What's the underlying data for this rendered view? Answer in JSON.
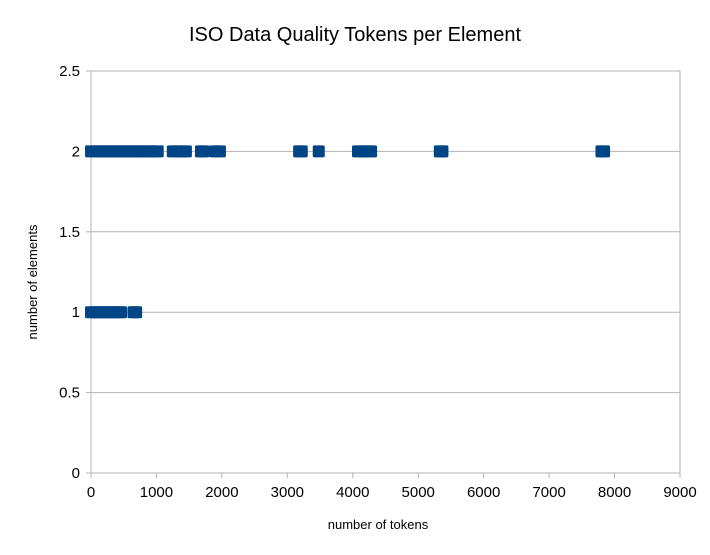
{
  "chart_data": {
    "type": "scatter",
    "title": "ISO Data Quality Tokens per Element",
    "xlabel": "number of tokens",
    "ylabel": "number of elements",
    "xlim": [
      0,
      9000
    ],
    "ylim": [
      0,
      2.5
    ],
    "xticks": [
      "0",
      "1000",
      "2000",
      "3000",
      "4000",
      "5000",
      "6000",
      "7000",
      "8000",
      "9000"
    ],
    "yticks": [
      "0",
      "0.5",
      "1",
      "1.5",
      "2",
      "2.5"
    ],
    "grid": "horizontal",
    "legend": "none",
    "marker_color": "#004586",
    "series": [
      {
        "points": [
          {
            "x": 0,
            "y": 2
          },
          {
            "x": 60,
            "y": 2
          },
          {
            "x": 120,
            "y": 2
          },
          {
            "x": 180,
            "y": 2
          },
          {
            "x": 240,
            "y": 2
          },
          {
            "x": 300,
            "y": 2
          },
          {
            "x": 360,
            "y": 2
          },
          {
            "x": 420,
            "y": 2
          },
          {
            "x": 480,
            "y": 2
          },
          {
            "x": 540,
            "y": 2
          },
          {
            "x": 600,
            "y": 2
          },
          {
            "x": 660,
            "y": 2
          },
          {
            "x": 720,
            "y": 2
          },
          {
            "x": 780,
            "y": 2
          },
          {
            "x": 840,
            "y": 2
          },
          {
            "x": 900,
            "y": 2
          },
          {
            "x": 960,
            "y": 2
          },
          {
            "x": 1020,
            "y": 2
          },
          {
            "x": 1250,
            "y": 2
          },
          {
            "x": 1320,
            "y": 2
          },
          {
            "x": 1400,
            "y": 2
          },
          {
            "x": 1450,
            "y": 2
          },
          {
            "x": 1680,
            "y": 2
          },
          {
            "x": 1720,
            "y": 2
          },
          {
            "x": 1900,
            "y": 2
          },
          {
            "x": 1970,
            "y": 2
          },
          {
            "x": 3180,
            "y": 2
          },
          {
            "x": 3220,
            "y": 2
          },
          {
            "x": 3480,
            "y": 2
          },
          {
            "x": 4080,
            "y": 2
          },
          {
            "x": 4150,
            "y": 2
          },
          {
            "x": 4230,
            "y": 2
          },
          {
            "x": 4280,
            "y": 2
          },
          {
            "x": 5330,
            "y": 2
          },
          {
            "x": 5370,
            "y": 2
          },
          {
            "x": 7800,
            "y": 2
          },
          {
            "x": 7840,
            "y": 2
          },
          {
            "x": 0,
            "y": 1
          },
          {
            "x": 60,
            "y": 1
          },
          {
            "x": 120,
            "y": 1
          },
          {
            "x": 180,
            "y": 1
          },
          {
            "x": 240,
            "y": 1
          },
          {
            "x": 300,
            "y": 1
          },
          {
            "x": 360,
            "y": 1
          },
          {
            "x": 420,
            "y": 1
          },
          {
            "x": 460,
            "y": 1
          },
          {
            "x": 650,
            "y": 1
          },
          {
            "x": 690,
            "y": 1
          }
        ]
      }
    ]
  }
}
